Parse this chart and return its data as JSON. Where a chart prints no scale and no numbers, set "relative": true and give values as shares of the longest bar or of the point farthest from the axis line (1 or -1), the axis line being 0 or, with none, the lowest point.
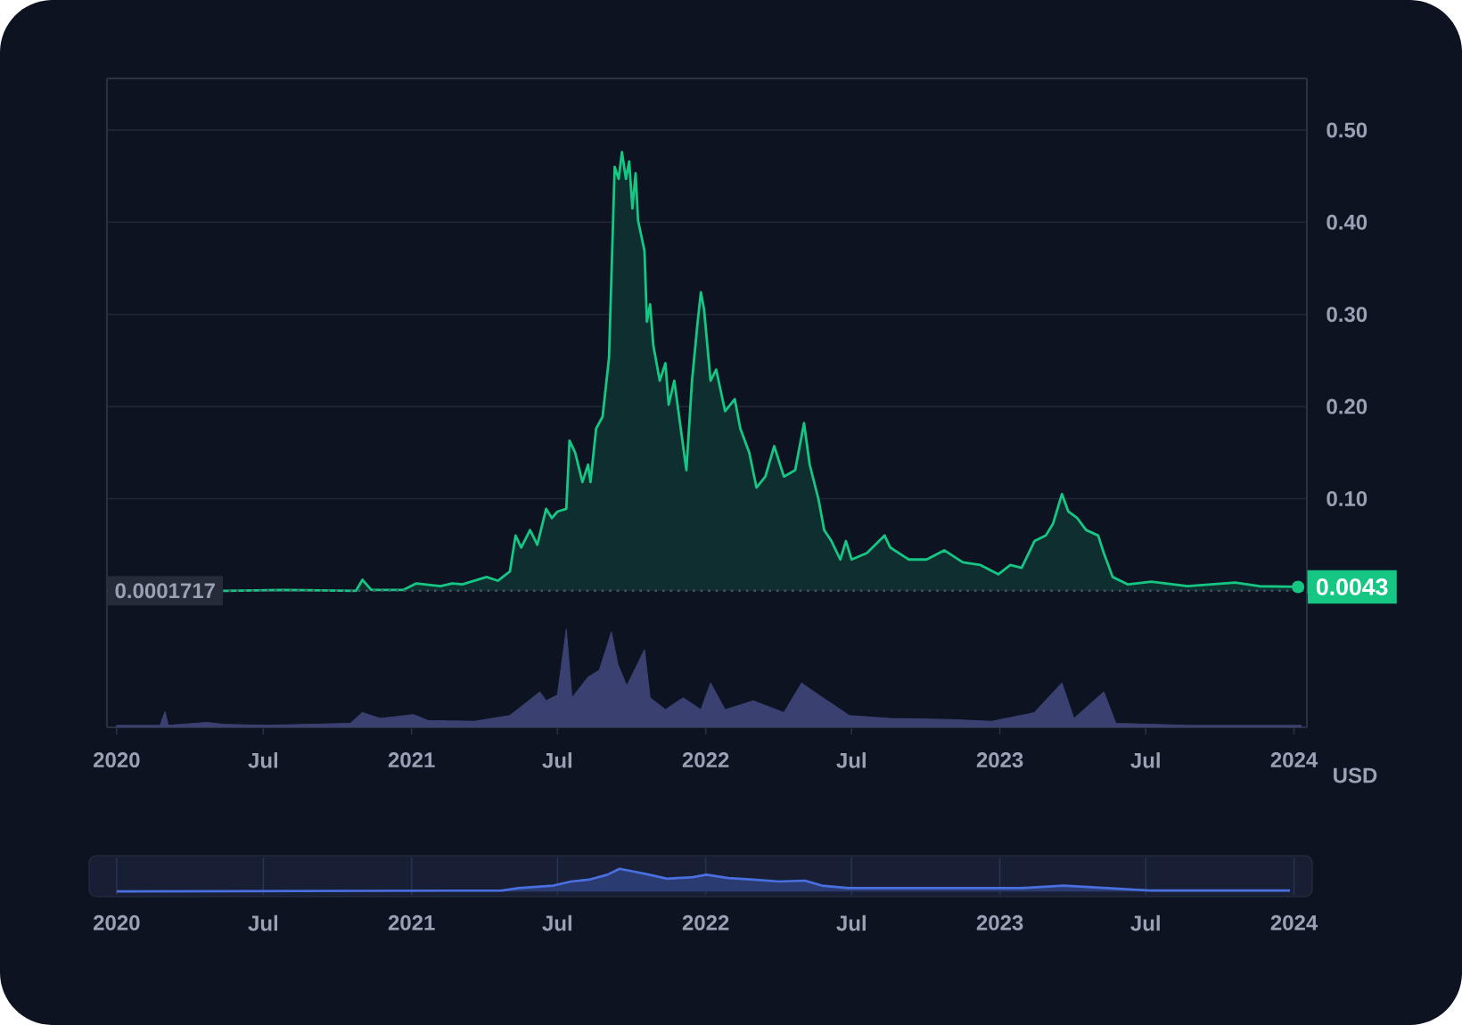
{
  "chart_data": [
    {
      "type": "area",
      "color": "#16c784",
      "xlim": [
        "2019-12-20",
        "2024-01-17"
      ],
      "ylim": [
        -0.003,
        0.556
      ],
      "yticks": [
        {
          "value": 0.1,
          "label": "0.10"
        },
        {
          "value": 0.2,
          "label": "0.20"
        },
        {
          "value": 0.3,
          "label": "0.30"
        },
        {
          "value": 0.4,
          "label": "0.40"
        },
        {
          "value": 0.5,
          "label": "0.50"
        }
      ],
      "grid": "y",
      "tick_labels": "y",
      "x": [
        "2020-05-10",
        "2020-07-27",
        "2020-10-24",
        "2020-11-01",
        "2020-11-12",
        "2020-12-22",
        "2021-01-07",
        "2021-02-06",
        "2021-02-20",
        "2021-03-05",
        "2021-04-04",
        "2021-04-18",
        "2021-05-03",
        "2021-05-10",
        "2021-05-17",
        "2021-05-28",
        "2021-06-06",
        "2021-06-17",
        "2021-06-24",
        "2021-07-01",
        "2021-07-12",
        "2021-07-16",
        "2021-07-23",
        "2021-08-01",
        "2021-08-08",
        "2021-08-11",
        "2021-08-18",
        "2021-08-26",
        "2021-09-03",
        "2021-09-10",
        "2021-09-15",
        "2021-09-19",
        "2021-09-24",
        "2021-09-28",
        "2021-10-02",
        "2021-10-06",
        "2021-10-09",
        "2021-10-17",
        "2021-10-20",
        "2021-10-24",
        "2021-10-28",
        "2021-11-05",
        "2021-11-12",
        "2021-11-16",
        "2021-11-23",
        "2021-12-01",
        "2021-12-08",
        "2021-12-15",
        "2021-12-22",
        "2021-12-26",
        "2021-12-30",
        "2022-01-07",
        "2022-01-14",
        "2022-01-25",
        "2022-02-06",
        "2022-02-13",
        "2022-02-24",
        "2022-03-05",
        "2022-03-16",
        "2022-03-27",
        "2022-04-08",
        "2022-04-22",
        "2022-05-03",
        "2022-05-10",
        "2022-05-21",
        "2022-05-28",
        "2022-06-06",
        "2022-06-17",
        "2022-06-24",
        "2022-07-01",
        "2022-07-20",
        "2022-08-11",
        "2022-08-18",
        "2022-09-10",
        "2022-10-02",
        "2022-10-24",
        "2022-11-16",
        "2022-12-08",
        "2022-12-30",
        "2023-01-14",
        "2023-01-28",
        "2023-02-13",
        "2023-02-27",
        "2023-03-08",
        "2023-03-19",
        "2023-03-27",
        "2023-04-07",
        "2023-04-18",
        "2023-05-03",
        "2023-05-10",
        "2023-05-21",
        "2023-06-09",
        "2023-07-08",
        "2023-08-22",
        "2023-10-20",
        "2023-11-19",
        "2024-01-06"
      ],
      "values": [
        0,
        0.001,
        0,
        0.012,
        0.001,
        0.001,
        0.008,
        0.005,
        0.008,
        0.007,
        0.015,
        0.011,
        0.021,
        0.06,
        0.047,
        0.066,
        0.05,
        0.089,
        0.079,
        0.086,
        0.089,
        0.163,
        0.15,
        0.118,
        0.137,
        0.118,
        0.176,
        0.189,
        0.253,
        0.46,
        0.447,
        0.476,
        0.447,
        0.466,
        0.415,
        0.453,
        0.402,
        0.369,
        0.292,
        0.311,
        0.266,
        0.228,
        0.247,
        0.202,
        0.228,
        0.176,
        0.131,
        0.228,
        0.292,
        0.324,
        0.305,
        0.228,
        0.24,
        0.195,
        0.208,
        0.176,
        0.15,
        0.112,
        0.124,
        0.157,
        0.124,
        0.131,
        0.182,
        0.137,
        0.099,
        0.066,
        0.054,
        0.034,
        0.054,
        0.034,
        0.041,
        0.06,
        0.047,
        0.034,
        0.034,
        0.044,
        0.031,
        0.028,
        0.018,
        0.028,
        0.025,
        0.054,
        0.06,
        0.073,
        0.105,
        0.086,
        0.079,
        0.066,
        0.06,
        0.041,
        0.015,
        0.007,
        0.01,
        0.005,
        0.009,
        0.005,
        0.0043
      ],
      "ref_lines": [
        {
          "axis": "y",
          "value": 0.0001717,
          "label": "0.0001717",
          "line_style": "dotted",
          "color": "#4a5064"
        }
      ],
      "annotations": [
        {
          "text": "0.0043",
          "x": "2024-01-06",
          "y": 0.0043
        }
      ]
    },
    {
      "type": "area",
      "relative": true,
      "ylabel": "USD",
      "color": "#3a4170",
      "xlim": [
        "2019-12-20",
        "2024-01-17"
      ],
      "tick_labels": "x",
      "xticks": [
        {
          "value": "2020-01-01",
          "label": "2020"
        },
        {
          "value": "2020-07-01",
          "label": "Jul"
        },
        {
          "value": "2021-01-01",
          "label": "2021"
        },
        {
          "value": "2021-07-01",
          "label": "Jul"
        },
        {
          "value": "2022-01-01",
          "label": "2022"
        },
        {
          "value": "2022-07-01",
          "label": "Jul"
        },
        {
          "value": "2023-01-01",
          "label": "2023"
        },
        {
          "value": "2023-07-01",
          "label": "Jul"
        },
        {
          "value": "2024-01-01",
          "label": "2024"
        }
      ],
      "x": [
        "2020-01-01",
        "2020-02-24",
        "2020-03-01",
        "2020-03-05",
        "2020-04-22",
        "2020-05-14",
        "2020-07-05",
        "2020-10-17",
        "2020-11-01",
        "2020-11-23",
        "2021-01-03",
        "2021-01-21",
        "2021-03-20",
        "2021-05-03",
        "2021-05-17",
        "2021-06-09",
        "2021-06-17",
        "2021-07-01",
        "2021-07-12",
        "2021-07-19",
        "2021-08-08",
        "2021-08-22",
        "2021-09-06",
        "2021-09-14",
        "2021-09-25",
        "2021-10-17",
        "2021-10-24",
        "2021-11-12",
        "2021-12-04",
        "2021-12-26",
        "2022-01-07",
        "2022-01-25",
        "2022-03-01",
        "2022-04-08",
        "2022-04-30",
        "2022-05-21",
        "2022-06-28",
        "2022-08-18",
        "2022-11-01",
        "2022-12-22",
        "2023-02-13",
        "2023-03-19",
        "2023-04-03",
        "2023-05-10",
        "2023-05-25",
        "2023-08-22",
        "2024-01-10"
      ],
      "values": [
        0.02,
        0.02,
        0.16,
        0.02,
        0.05,
        0.03,
        0.02,
        0.04,
        0.15,
        0.09,
        0.13,
        0.07,
        0.06,
        0.12,
        0.21,
        0.36,
        0.27,
        0.33,
        1,
        0.3,
        0.51,
        0.58,
        0.97,
        0.64,
        0.42,
        0.79,
        0.3,
        0.18,
        0.3,
        0.18,
        0.45,
        0.18,
        0.27,
        0.15,
        0.45,
        0.33,
        0.12,
        0.09,
        0.08,
        0.06,
        0.15,
        0.45,
        0.09,
        0.36,
        0.04,
        0.02,
        0.02
      ]
    },
    {
      "type": "area",
      "relative": true,
      "color": "#4a6fe0",
      "xlim": [
        "2019-12-20",
        "2024-01-17"
      ],
      "tick_labels": "x",
      "grid": "x",
      "xticks": [
        {
          "value": "2020-01-01",
          "label": "2020"
        },
        {
          "value": "2020-07-01",
          "label": "Jul"
        },
        {
          "value": "2021-01-01",
          "label": "2021"
        },
        {
          "value": "2021-07-01",
          "label": "Jul"
        },
        {
          "value": "2022-01-01",
          "label": "2022"
        },
        {
          "value": "2022-07-01",
          "label": "Jul"
        },
        {
          "value": "2023-01-01",
          "label": "2023"
        },
        {
          "value": "2023-07-01",
          "label": "Jul"
        },
        {
          "value": "2024-01-01",
          "label": "2024"
        }
      ],
      "x": [
        "2020-01-01",
        "2021-04-23",
        "2021-05-14",
        "2021-06-26",
        "2021-07-18",
        "2021-08-09",
        "2021-09-01",
        "2021-09-16",
        "2021-10-02",
        "2021-10-23",
        "2021-11-14",
        "2021-12-16",
        "2022-01-02",
        "2022-01-29",
        "2022-03-01",
        "2022-04-02",
        "2022-05-04",
        "2022-05-25",
        "2022-06-27",
        "2022-10-13",
        "2023-01-28",
        "2023-03-21",
        "2023-05-14",
        "2023-07-07",
        "2023-12-27"
      ],
      "values": [
        0,
        0.04,
        0.15,
        0.26,
        0.44,
        0.52,
        0.74,
        1,
        0.89,
        0.74,
        0.56,
        0.63,
        0.74,
        0.59,
        0.52,
        0.44,
        0.48,
        0.26,
        0.15,
        0.15,
        0.15,
        0.26,
        0.15,
        0.04,
        0.04
      ]
    }
  ]
}
